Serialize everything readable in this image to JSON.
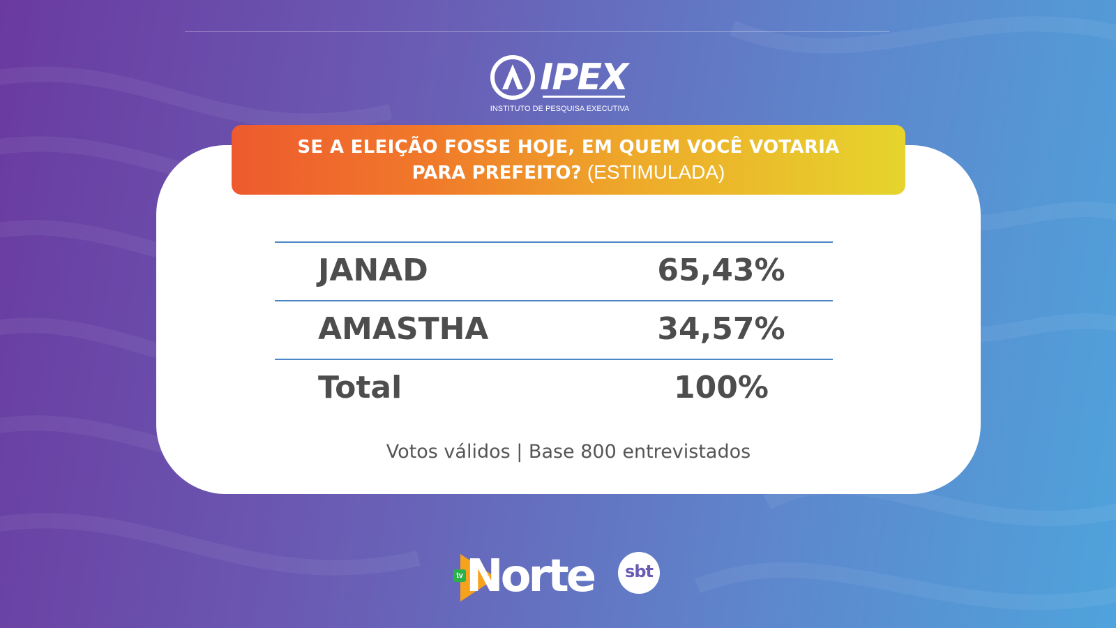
{
  "brand": {
    "logo_text": "IPEX",
    "logo_subtitle": "INSTITUTO DE PESQUISA EXECUTIVA",
    "footer_logo_tv": "tv",
    "footer_logo_name": "Norte",
    "footer_logo_network": "sbt"
  },
  "question": {
    "line1": "SE A ELEIÇÃO FOSSE HOJE, EM QUEM VOCÊ VOTARIA",
    "line2": "PARA PREFEITO?",
    "tag": "(ESTIMULADA)"
  },
  "chart_data": {
    "type": "table",
    "rows": [
      {
        "name": "JANAD",
        "value": 65.43,
        "label": "65,43%"
      },
      {
        "name": "AMASTHA",
        "value": 34.57,
        "label": "34,57%"
      },
      {
        "name": "Total",
        "value": 100,
        "label": "100%"
      }
    ]
  },
  "note": "Votos válidos | Base 800 entrevistados",
  "colors": {
    "banner_start": "#ee5a2e",
    "banner_end": "#e6d42c",
    "row_rule": "#4a86c6",
    "text": "#4d4d4d"
  }
}
